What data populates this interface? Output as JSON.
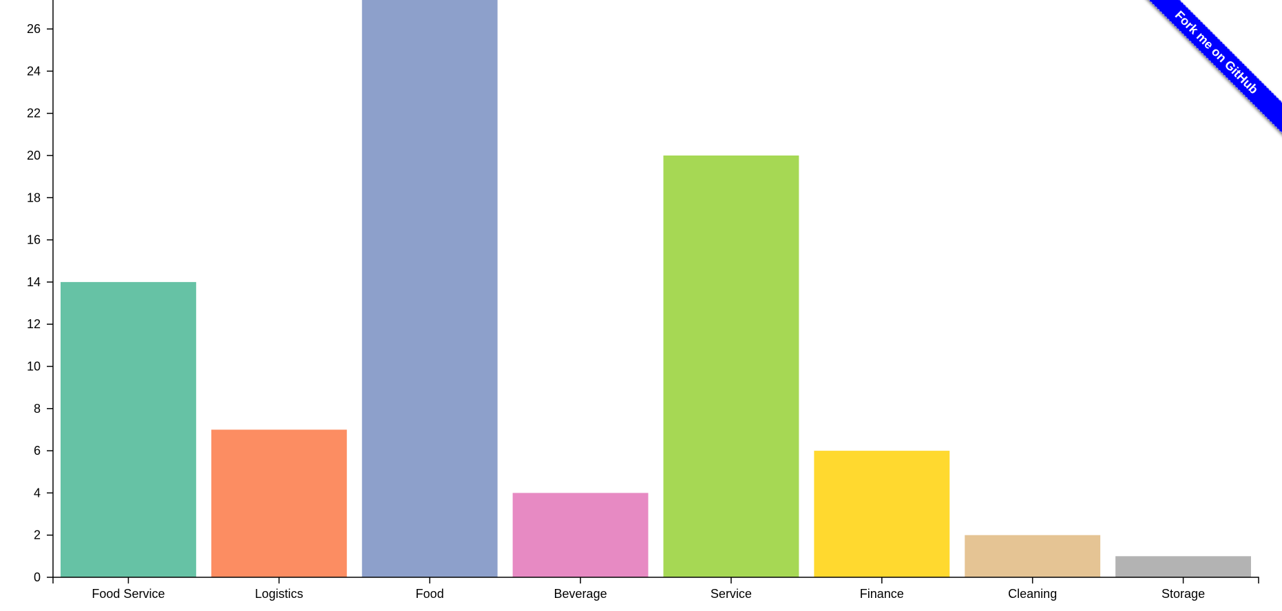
{
  "ribbon": {
    "label": "Fork me on GitHub",
    "color": "#0000ff"
  },
  "chart_data": {
    "type": "bar",
    "categories": [
      "Food Service",
      "Logistics",
      "Food",
      "Beverage",
      "Service",
      "Finance",
      "Cleaning",
      "Storage"
    ],
    "values": [
      14,
      7,
      28,
      4,
      20,
      6,
      2,
      1
    ],
    "colors": [
      "#66c2a5",
      "#fc8d62",
      "#8da0cb",
      "#e78ac3",
      "#a6d854",
      "#ffd92f",
      "#e5c494",
      "#b3b3b3"
    ],
    "yticks": [
      0,
      2,
      4,
      6,
      8,
      10,
      12,
      14,
      16,
      18,
      20,
      22,
      24,
      26
    ],
    "ylim": [
      0,
      27.5
    ],
    "title": "",
    "xlabel": "",
    "ylabel": "",
    "grid": false,
    "legend": "none"
  }
}
